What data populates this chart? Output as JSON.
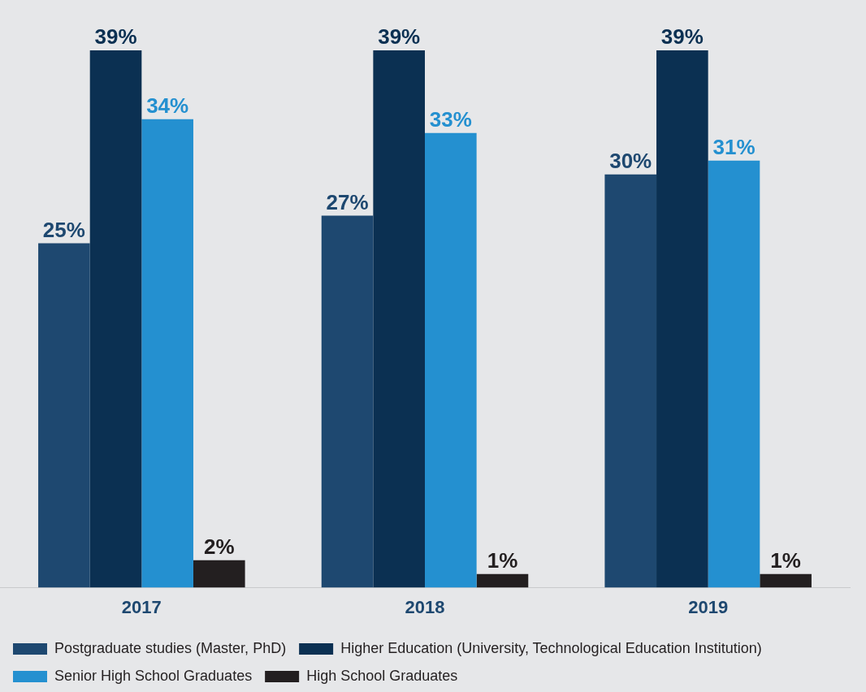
{
  "chart_data": {
    "type": "bar",
    "categories": [
      "2017",
      "2018",
      "2019"
    ],
    "series": [
      {
        "name": "Postgraduate studies (Master, PhD)",
        "color": "#1e4870",
        "values": [
          25,
          27,
          30
        ],
        "value_labels": [
          "25%",
          "27%",
          "30%"
        ]
      },
      {
        "name": "Higher Education (University, Technological Education Institution)",
        "color": "#0b3052",
        "values": [
          39,
          39,
          39
        ],
        "value_labels": [
          "39%",
          "39%",
          "39%"
        ]
      },
      {
        "name": "Senior High School Graduates",
        "color": "#2490d0",
        "values": [
          34,
          33,
          31
        ],
        "value_labels": [
          "34%",
          "33%",
          "31%"
        ]
      },
      {
        "name": "High School Graduates",
        "color": "#231f20",
        "values": [
          2,
          1,
          1
        ],
        "value_labels": [
          "2%",
          "1%",
          "1%"
        ]
      }
    ],
    "tick_labels": "x",
    "grid": false,
    "legend": "bottom"
  }
}
